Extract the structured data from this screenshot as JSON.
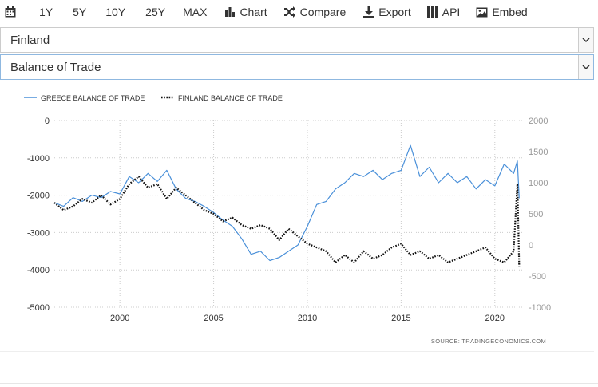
{
  "toolbar": {
    "ranges": [
      "1Y",
      "5Y",
      "10Y",
      "25Y",
      "MAX"
    ],
    "chart_label": "Chart",
    "compare_label": "Compare",
    "export_label": "Export",
    "api_label": "API",
    "embed_label": "Embed"
  },
  "selects": {
    "country": "Finland",
    "indicator": "Balance of Trade"
  },
  "colors": {
    "greece": "#4a90d9",
    "finland": "#111111",
    "grid": "#cccccc",
    "tick_text": "#333333",
    "right_tick_text": "#999999"
  },
  "chart_data": {
    "type": "line",
    "title": "",
    "source": "SOURCE: TRADINGECONOMICS.COM",
    "x_range": [
      1996.5,
      2021.5
    ],
    "x_ticks": [
      2000,
      2005,
      2010,
      2015,
      2020
    ],
    "left_axis": {
      "series": "FINLAND BALANCE OF TRADE",
      "range": [
        -5000,
        0
      ],
      "ticks": [
        0,
        -1000,
        -2000,
        -3000,
        -4000,
        -5000
      ]
    },
    "right_axis": {
      "series": "GREECE BALANCE OF TRADE",
      "range": [
        -1000,
        2000
      ],
      "ticks": [
        2000,
        1500,
        1000,
        500,
        0,
        -500,
        -1000
      ]
    },
    "grid": true,
    "legend_placement": "top-left",
    "series": [
      {
        "name": "GREECE BALANCE OF TRADE",
        "axis": "right",
        "style": "solid",
        "points": [
          [
            1996.5,
            680
          ],
          [
            1997,
            620
          ],
          [
            1997.5,
            760
          ],
          [
            1998,
            700
          ],
          [
            1998.5,
            800
          ],
          [
            1999,
            760
          ],
          [
            1999.5,
            860
          ],
          [
            2000,
            820
          ],
          [
            2000.5,
            1100
          ],
          [
            2001,
            1000
          ],
          [
            2001.5,
            1150
          ],
          [
            2002,
            1020
          ],
          [
            2002.5,
            1200
          ],
          [
            2003,
            900
          ],
          [
            2003.5,
            750
          ],
          [
            2004,
            700
          ],
          [
            2004.5,
            620
          ],
          [
            2005,
            520
          ],
          [
            2005.5,
            400
          ],
          [
            2006,
            300
          ],
          [
            2006.5,
            100
          ],
          [
            2007,
            -150
          ],
          [
            2007.5,
            -100
          ],
          [
            2008,
            -250
          ],
          [
            2008.5,
            -200
          ],
          [
            2009,
            -100
          ],
          [
            2009.5,
            0
          ],
          [
            2010,
            300
          ],
          [
            2010.5,
            650
          ],
          [
            2011,
            700
          ],
          [
            2011.5,
            900
          ],
          [
            2012,
            1000
          ],
          [
            2012.5,
            1150
          ],
          [
            2013,
            1100
          ],
          [
            2013.5,
            1200
          ],
          [
            2014,
            1050
          ],
          [
            2014.5,
            1150
          ],
          [
            2015,
            1200
          ],
          [
            2015.5,
            1600
          ],
          [
            2016,
            1100
          ],
          [
            2016.5,
            1250
          ],
          [
            2017,
            1000
          ],
          [
            2017.5,
            1150
          ],
          [
            2018,
            1000
          ],
          [
            2018.5,
            1100
          ],
          [
            2019,
            900
          ],
          [
            2019.5,
            1050
          ],
          [
            2020,
            950
          ],
          [
            2020.5,
            1300
          ],
          [
            2021,
            1150
          ],
          [
            2021.2,
            1350
          ],
          [
            2021.3,
            750
          ]
        ]
      },
      {
        "name": "FINLAND BALANCE OF TRADE",
        "axis": "left",
        "style": "dotted",
        "points": [
          [
            1996.5,
            -2200
          ],
          [
            1997,
            -2400
          ],
          [
            1997.5,
            -2300
          ],
          [
            1998,
            -2100
          ],
          [
            1998.5,
            -2200
          ],
          [
            1999,
            -2000
          ],
          [
            1999.5,
            -2250
          ],
          [
            2000,
            -2100
          ],
          [
            2000.5,
            -1700
          ],
          [
            2001,
            -1500
          ],
          [
            2001.5,
            -1800
          ],
          [
            2002,
            -1700
          ],
          [
            2002.5,
            -2100
          ],
          [
            2003,
            -1800
          ],
          [
            2003.5,
            -2000
          ],
          [
            2004,
            -2200
          ],
          [
            2004.5,
            -2400
          ],
          [
            2005,
            -2500
          ],
          [
            2005.5,
            -2700
          ],
          [
            2006,
            -2600
          ],
          [
            2006.5,
            -2800
          ],
          [
            2007,
            -2900
          ],
          [
            2007.5,
            -2800
          ],
          [
            2008,
            -2900
          ],
          [
            2008.5,
            -3200
          ],
          [
            2009,
            -2900
          ],
          [
            2009.5,
            -3100
          ],
          [
            2010,
            -3300
          ],
          [
            2010.5,
            -3400
          ],
          [
            2011,
            -3500
          ],
          [
            2011.5,
            -3800
          ],
          [
            2012,
            -3600
          ],
          [
            2012.5,
            -3800
          ],
          [
            2013,
            -3500
          ],
          [
            2013.5,
            -3700
          ],
          [
            2014,
            -3600
          ],
          [
            2014.5,
            -3400
          ],
          [
            2015,
            -3300
          ],
          [
            2015.5,
            -3600
          ],
          [
            2016,
            -3500
          ],
          [
            2016.5,
            -3700
          ],
          [
            2017,
            -3600
          ],
          [
            2017.5,
            -3800
          ],
          [
            2018,
            -3700
          ],
          [
            2018.5,
            -3600
          ],
          [
            2019,
            -3500
          ],
          [
            2019.5,
            -3400
          ],
          [
            2020,
            -3700
          ],
          [
            2020.5,
            -3800
          ],
          [
            2021,
            -3500
          ],
          [
            2021.2,
            -1700
          ],
          [
            2021.3,
            -3900
          ]
        ]
      }
    ]
  }
}
